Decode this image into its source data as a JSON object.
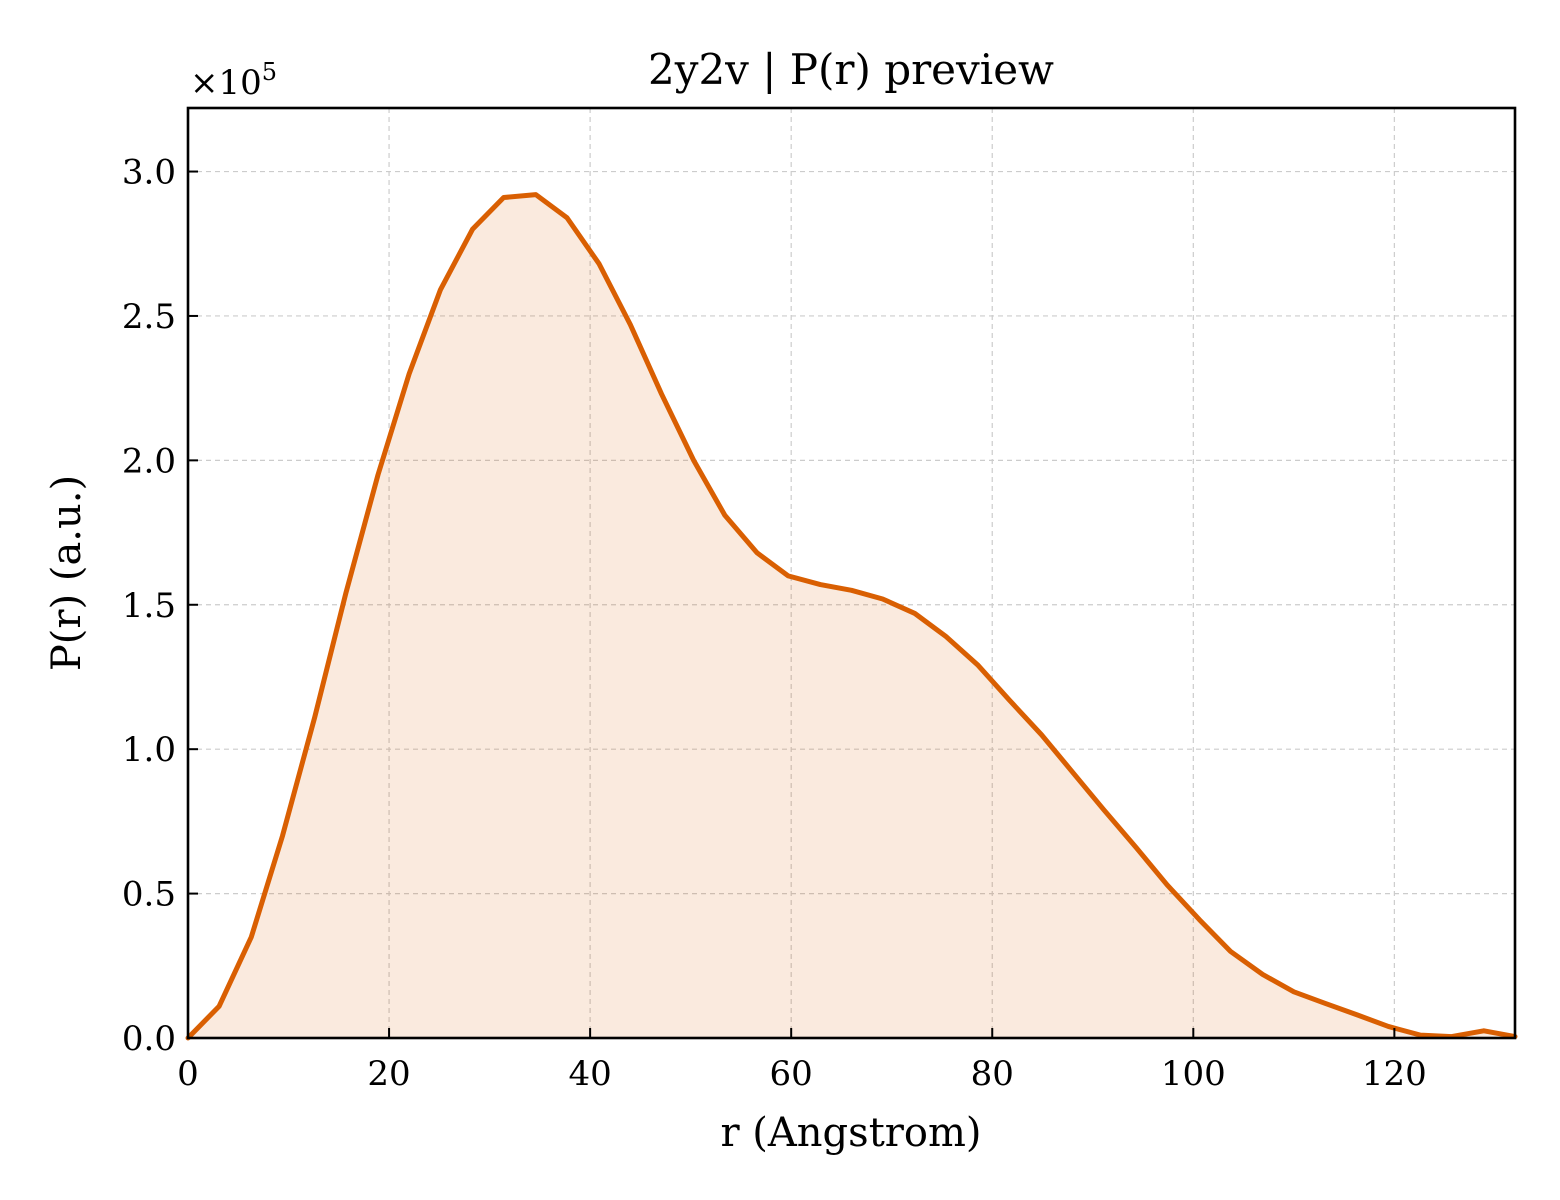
{
  "chart_data": {
    "type": "area",
    "title": "2y2v | P(r) preview",
    "xlabel": "r (Angstrom)",
    "ylabel": "P(r) (a.u.)",
    "y_offset_label": "×10",
    "y_offset_exponent": "5",
    "xlim": [
      0,
      132
    ],
    "ylim": [
      0,
      3.22
    ],
    "y_scale_note": "values in units of 1e5",
    "xticks": [
      0,
      20,
      40,
      60,
      80,
      100,
      120
    ],
    "xtick_labels": [
      "0",
      "20",
      "40",
      "60",
      "80",
      "100",
      "120"
    ],
    "yticks": [
      0.0,
      0.5,
      1.0,
      1.5,
      2.0,
      2.5,
      3.0
    ],
    "ytick_labels": [
      "0.0",
      "0.5",
      "1.0",
      "1.5",
      "2.0",
      "2.5",
      "3.0"
    ],
    "grid": true,
    "line_color": "#d95f02",
    "fill_color": "#d95f02",
    "fill_opacity": 0.13,
    "series": [
      {
        "x": [
          0,
          3.1,
          6.3,
          9.4,
          12.6,
          15.7,
          18.9,
          22.0,
          25.1,
          28.3,
          31.4,
          34.6,
          37.7,
          40.9,
          44.0,
          47.1,
          50.3,
          53.4,
          56.6,
          59.7,
          62.9,
          66.0,
          69.1,
          72.3,
          75.4,
          78.6,
          81.7,
          84.9,
          88.0,
          91.1,
          94.3,
          97.4,
          100.6,
          103.7,
          106.9,
          110.0,
          113.1,
          116.3,
          119.4,
          122.6,
          125.7,
          128.9,
          132.0
        ],
        "values": [
          0.0,
          0.11,
          0.35,
          0.7,
          1.11,
          1.54,
          1.95,
          2.3,
          2.59,
          2.8,
          2.91,
          2.92,
          2.84,
          2.68,
          2.47,
          2.23,
          2.0,
          1.81,
          1.68,
          1.6,
          1.57,
          1.55,
          1.52,
          1.47,
          1.39,
          1.29,
          1.17,
          1.05,
          0.92,
          0.79,
          0.66,
          0.53,
          0.41,
          0.3,
          0.22,
          0.16,
          0.12,
          0.08,
          0.04,
          0.01,
          0.005,
          0.025,
          0.005
        ]
      }
    ]
  }
}
